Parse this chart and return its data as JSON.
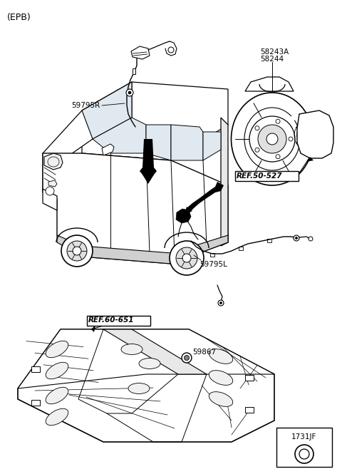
{
  "background_color": "#ffffff",
  "labels": {
    "epb": "(EPB)",
    "part1": "59795R",
    "part2": "58243A",
    "part3": "58244",
    "part4": "REF.50-527",
    "part5": "59795L",
    "part6": "REF.60-651",
    "part7": "59867",
    "part8": "1731JF"
  },
  "figsize": [
    4.8,
    6.65
  ],
  "dpi": 100,
  "car_color": "#cccccc",
  "line_color": "#000000"
}
